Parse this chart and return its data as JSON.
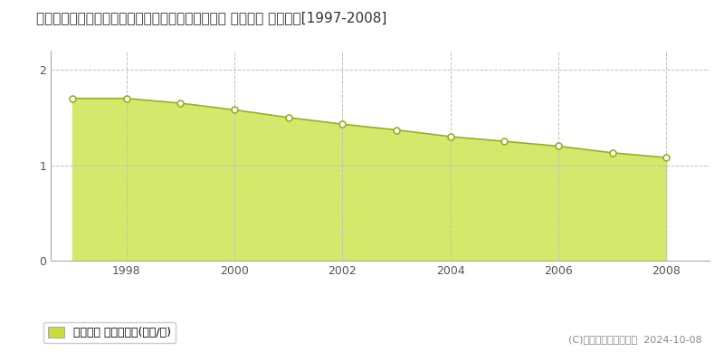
{
  "title": "北海道白糠郡白糠町西庶路東３条北３丁目２番１内 基準地価 地価推移[1997-2008]",
  "years": [
    1997,
    1998,
    1999,
    2000,
    2001,
    2002,
    2003,
    2004,
    2005,
    2006,
    2007,
    2008
  ],
  "values": [
    1.7,
    1.7,
    1.65,
    1.58,
    1.5,
    1.43,
    1.37,
    1.3,
    1.25,
    1.2,
    1.13,
    1.08
  ],
  "fill_color": "#d4e96b",
  "line_color": "#9aaf1e",
  "marker_face": "#ffffff",
  "marker_edge": "#9aaf1e",
  "grid_color": "#c0c0c0",
  "background_color": "#ffffff",
  "ylim_max": 2.2,
  "yticks": [
    0,
    1,
    2
  ],
  "xtick_years": [
    1998,
    2000,
    2002,
    2004,
    2006,
    2008
  ],
  "xlim": [
    1996.6,
    2008.8
  ],
  "legend_label": "基準地価 平均坪単価(万円/坪)",
  "legend_color": "#c8dc3c",
  "copyright_text": "(C)土地価格ドットコム  2024-10-08",
  "title_fontsize": 11,
  "tick_fontsize": 9,
  "legend_fontsize": 9,
  "copyright_fontsize": 8
}
